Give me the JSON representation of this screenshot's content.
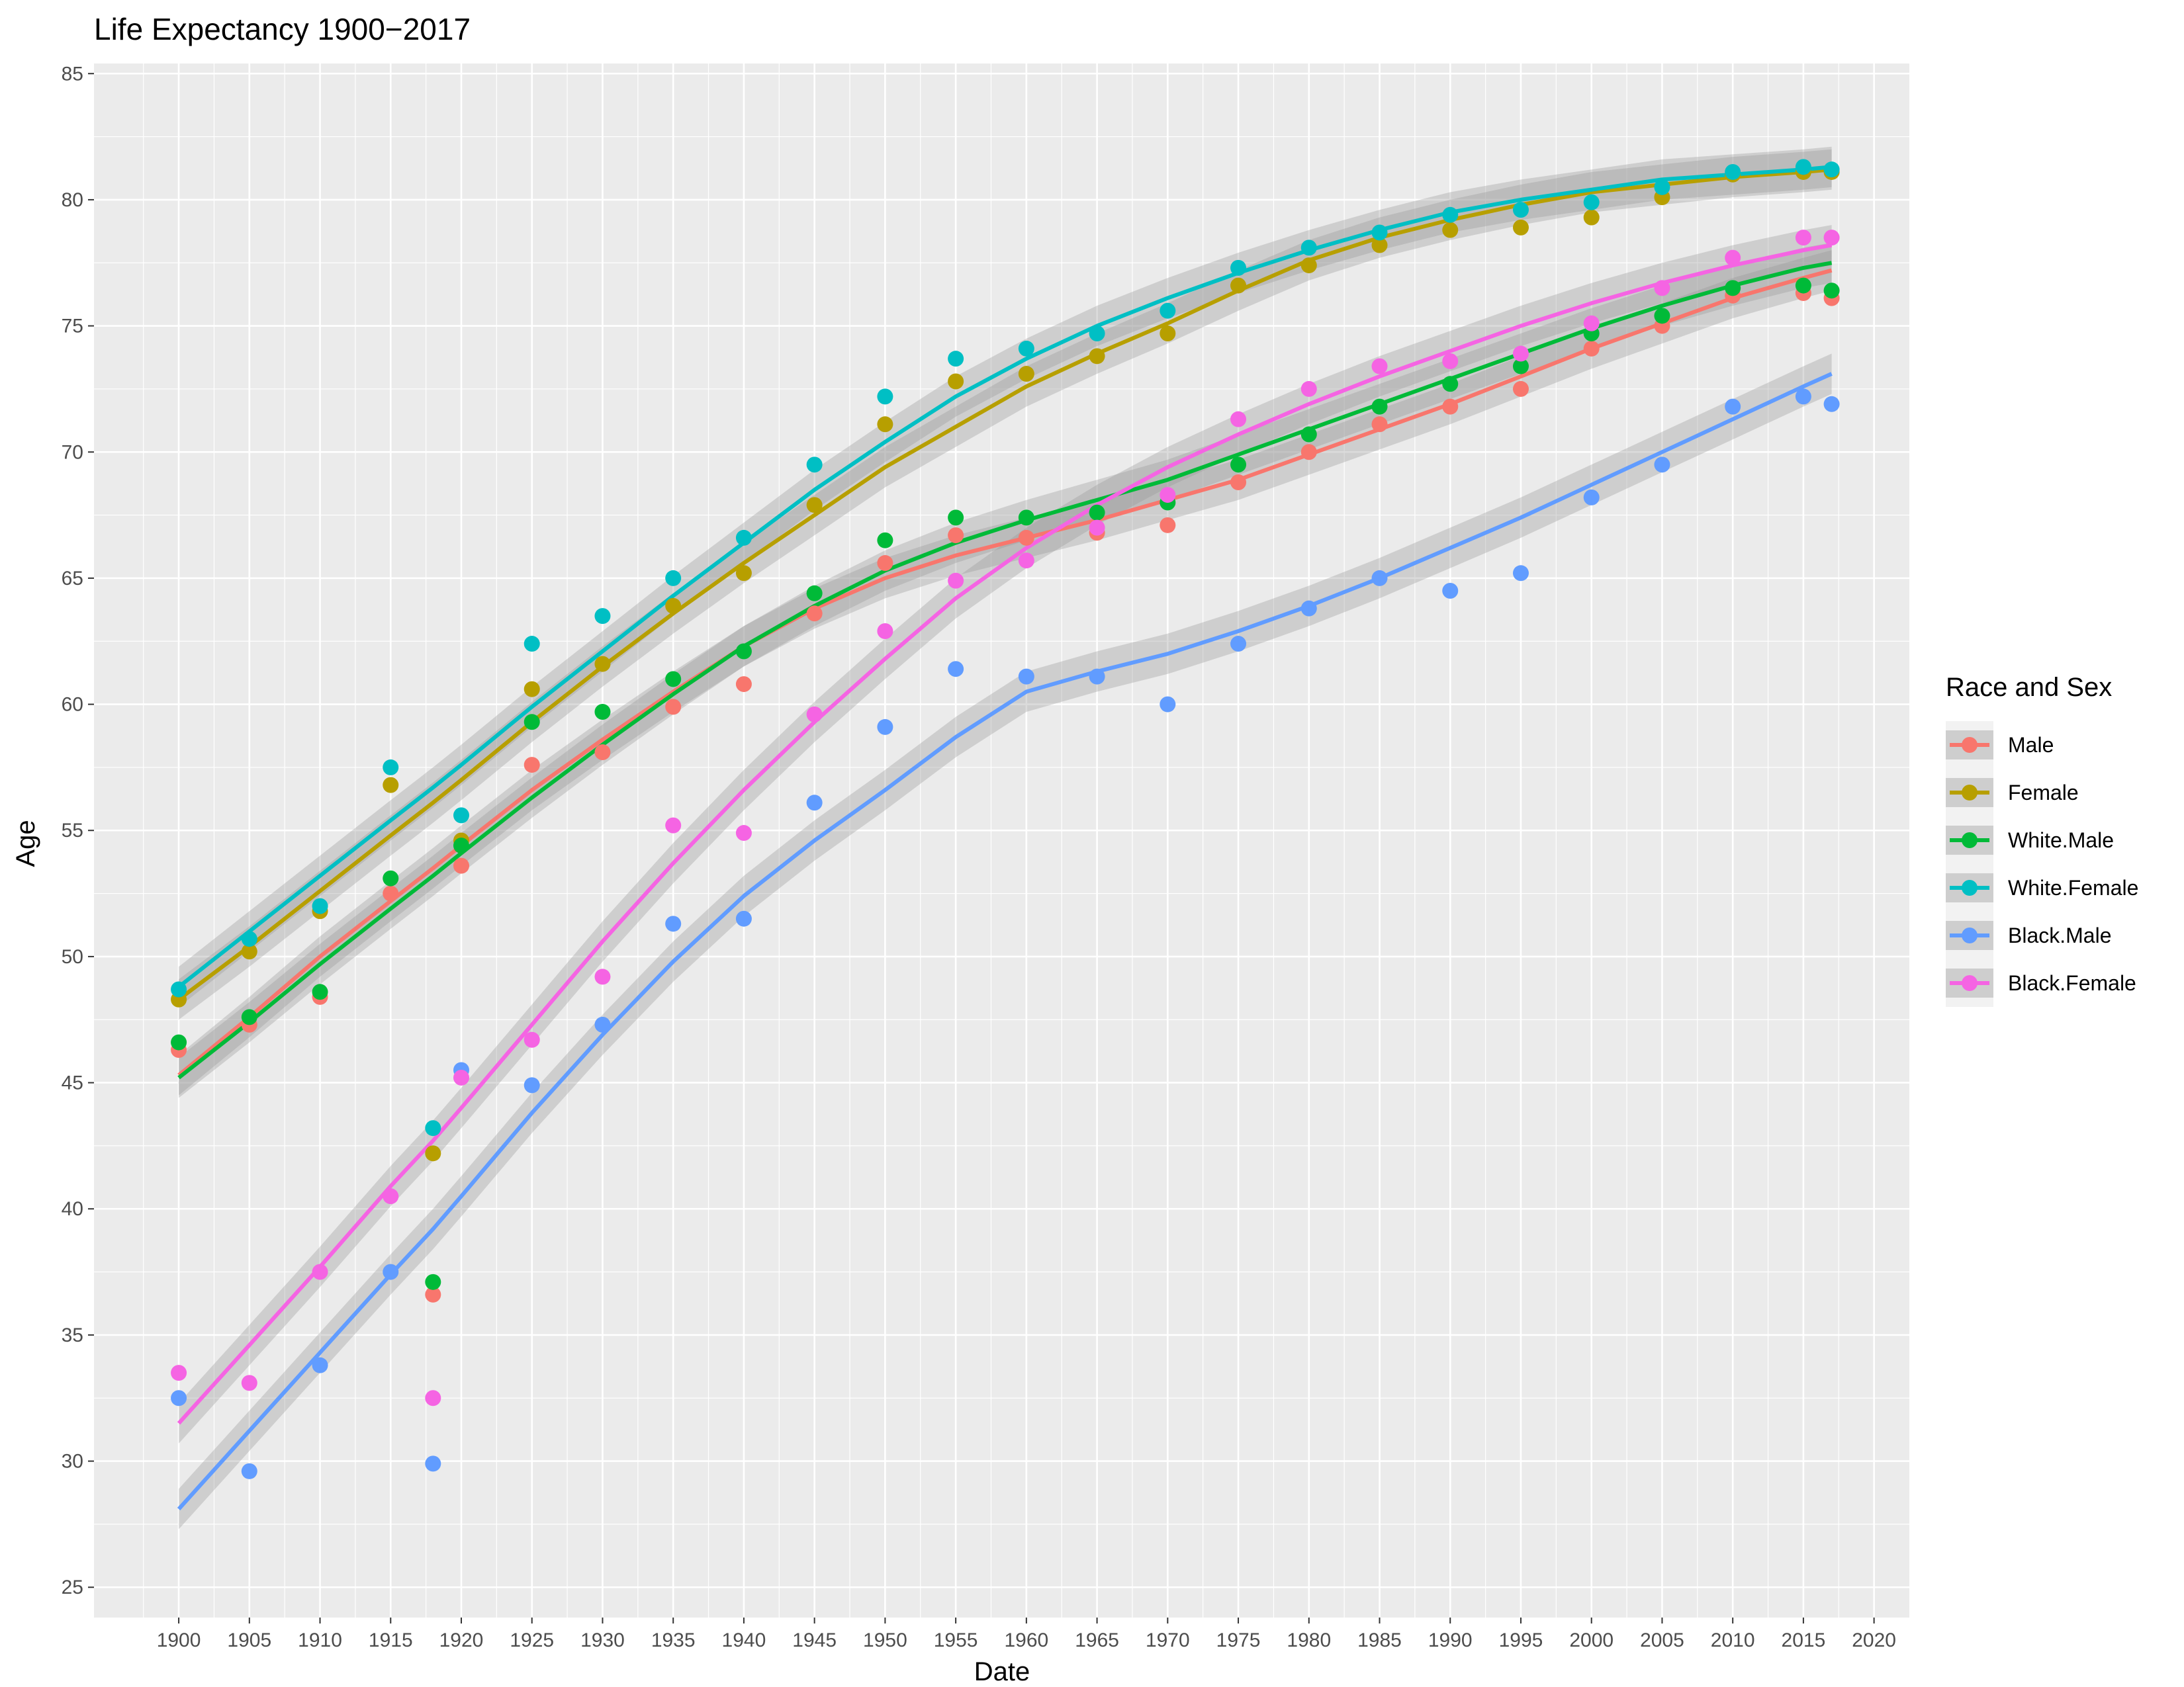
{
  "chart_data": {
    "type": "scatter",
    "title": "Life Expectancy 1900−2017",
    "xlabel": "Date",
    "ylabel": "Age",
    "xlim": [
      1894,
      2022.5
    ],
    "ylim": [
      23.8,
      85.4
    ],
    "x_ticks": [
      1900,
      1905,
      1910,
      1915,
      1920,
      1925,
      1930,
      1935,
      1940,
      1945,
      1950,
      1955,
      1960,
      1965,
      1970,
      1975,
      1980,
      1985,
      1990,
      1995,
      2000,
      2005,
      2010,
      2015,
      2020
    ],
    "y_ticks": [
      25,
      30,
      35,
      40,
      45,
      50,
      55,
      60,
      65,
      70,
      75,
      80,
      85
    ],
    "grid": true,
    "legend": {
      "title": "Race and Sex",
      "position": "right"
    },
    "x": [
      1900,
      1905,
      1910,
      1915,
      1918,
      1920,
      1925,
      1930,
      1935,
      1940,
      1945,
      1950,
      1955,
      1960,
      1965,
      1970,
      1975,
      1980,
      1985,
      1990,
      1995,
      2000,
      2005,
      2010,
      2015,
      2017
    ],
    "series": [
      {
        "name": "Male",
        "color": "#F8766D",
        "values": [
          46.3,
          47.3,
          48.4,
          52.5,
          36.6,
          53.6,
          57.6,
          58.1,
          59.9,
          60.8,
          63.6,
          65.6,
          66.7,
          66.6,
          66.8,
          67.1,
          68.8,
          70.0,
          71.1,
          71.8,
          72.5,
          74.1,
          75.0,
          76.2,
          76.3,
          76.1
        ],
        "trend": [
          45.3,
          47.6,
          50.0,
          52.2,
          53.5,
          54.4,
          56.6,
          58.6,
          60.5,
          62.3,
          63.8,
          65.0,
          65.9,
          66.6,
          67.3,
          68.1,
          68.9,
          69.9,
          70.9,
          71.9,
          73.0,
          74.1,
          75.1,
          76.1,
          76.9,
          77.2
        ]
      },
      {
        "name": "Female",
        "color": "#B79F00",
        "values": [
          48.3,
          50.2,
          51.8,
          56.8,
          42.2,
          54.6,
          60.6,
          61.6,
          63.9,
          65.2,
          67.9,
          71.1,
          72.8,
          73.1,
          73.8,
          74.7,
          76.6,
          77.4,
          78.2,
          78.8,
          78.9,
          79.3,
          80.1,
          81.0,
          81.1,
          81.1
        ],
        "trend": [
          48.3,
          50.4,
          52.6,
          54.8,
          56.1,
          57.0,
          59.3,
          61.5,
          63.6,
          65.6,
          67.5,
          69.4,
          71.0,
          72.6,
          73.9,
          75.1,
          76.4,
          77.6,
          78.5,
          79.2,
          79.8,
          80.3,
          80.6,
          80.9,
          81.1,
          81.2
        ]
      },
      {
        "name": "White.Male",
        "color": "#00BA38",
        "values": [
          46.6,
          47.6,
          48.6,
          53.1,
          37.1,
          54.4,
          59.3,
          59.7,
          61.0,
          62.1,
          64.4,
          66.5,
          67.4,
          67.4,
          67.6,
          68.0,
          69.5,
          70.7,
          71.8,
          72.7,
          73.4,
          74.7,
          75.4,
          76.5,
          76.6,
          76.4
        ],
        "trend": [
          45.2,
          47.4,
          49.7,
          51.9,
          53.2,
          54.1,
          56.3,
          58.4,
          60.4,
          62.3,
          63.9,
          65.3,
          66.4,
          67.3,
          68.1,
          68.9,
          69.9,
          70.9,
          71.9,
          72.9,
          73.9,
          74.9,
          75.8,
          76.6,
          77.3,
          77.5
        ]
      },
      {
        "name": "White.Female",
        "color": "#00BFC4",
        "values": [
          48.7,
          50.7,
          52.0,
          57.5,
          43.2,
          55.6,
          62.4,
          63.5,
          65.0,
          66.6,
          69.5,
          72.2,
          73.7,
          74.1,
          74.7,
          75.6,
          77.3,
          78.1,
          78.7,
          79.4,
          79.6,
          79.9,
          80.5,
          81.1,
          81.3,
          81.2
        ],
        "trend": [
          48.8,
          51.0,
          53.2,
          55.4,
          56.7,
          57.6,
          59.9,
          62.1,
          64.3,
          66.4,
          68.5,
          70.4,
          72.2,
          73.7,
          75.0,
          76.1,
          77.1,
          78.0,
          78.8,
          79.5,
          80.0,
          80.4,
          80.8,
          81.0,
          81.2,
          81.3
        ]
      },
      {
        "name": "Black.Male",
        "color": "#619CFF",
        "values": [
          32.5,
          29.6,
          33.8,
          37.5,
          29.9,
          45.5,
          44.9,
          47.3,
          51.3,
          51.5,
          56.1,
          59.1,
          61.4,
          61.1,
          61.1,
          60.0,
          62.4,
          63.8,
          65.0,
          64.5,
          65.2,
          68.2,
          69.5,
          71.8,
          72.2,
          71.9
        ],
        "trend": [
          28.1,
          31.2,
          34.3,
          37.4,
          39.2,
          40.5,
          43.8,
          46.9,
          49.8,
          52.4,
          54.6,
          56.6,
          58.7,
          60.5,
          61.3,
          62.0,
          62.9,
          63.9,
          65.0,
          66.2,
          67.4,
          68.7,
          70.0,
          71.3,
          72.6,
          73.1
        ]
      },
      {
        "name": "Black.Female",
        "color": "#F564E3",
        "values": [
          33.5,
          33.1,
          37.5,
          40.5,
          32.5,
          45.2,
          46.7,
          49.2,
          55.2,
          54.9,
          59.6,
          62.9,
          64.9,
          65.7,
          67.0,
          68.3,
          71.3,
          72.5,
          73.4,
          73.6,
          73.9,
          75.1,
          76.5,
          77.7,
          78.5,
          78.5
        ],
        "trend": [
          31.5,
          34.6,
          37.7,
          40.9,
          42.7,
          44.0,
          47.3,
          50.6,
          53.7,
          56.6,
          59.3,
          61.8,
          64.2,
          66.2,
          67.9,
          69.4,
          70.7,
          71.9,
          73.0,
          74.0,
          75.0,
          75.9,
          76.7,
          77.4,
          78.0,
          78.2
        ]
      }
    ]
  }
}
